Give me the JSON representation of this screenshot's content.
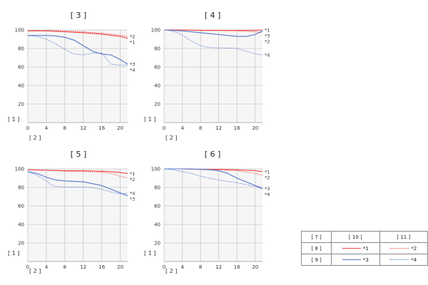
{
  "chart_data": [
    {
      "type": "line",
      "title": "[ 3 ]",
      "ylabel": "[ 1 ]",
      "xlabel": "[ 2 ]",
      "xlim": [
        0,
        21.6
      ],
      "ylim": [
        0,
        100
      ],
      "xticks": [
        0,
        4,
        8,
        12,
        16,
        20
      ],
      "yticks": [
        20,
        40,
        60,
        80,
        100
      ],
      "series": [
        {
          "name": "*1",
          "color": "#ee4444",
          "style": "solid",
          "x": [
            0,
            4,
            8,
            12,
            16,
            20,
            21.6
          ],
          "y": [
            99,
            99,
            98,
            97,
            95.5,
            93,
            91
          ]
        },
        {
          "name": "*2",
          "color": "#ee4444",
          "style": "dotted",
          "x": [
            0,
            4,
            8,
            12,
            16,
            20,
            21.6
          ],
          "y": [
            99.5,
            99.5,
            99,
            98,
            96.5,
            94.5,
            93
          ]
        },
        {
          "name": "*3",
          "color": "#5577cc",
          "style": "solid",
          "x": [
            0,
            2,
            4,
            6,
            8,
            10,
            12,
            14,
            16,
            18,
            20,
            21.6
          ],
          "y": [
            94,
            94,
            94,
            93.5,
            92,
            89,
            83,
            77,
            74,
            73,
            68,
            63
          ]
        },
        {
          "name": "*4",
          "color": "#5577cc",
          "style": "dotted",
          "x": [
            0,
            2,
            4,
            6,
            8,
            10,
            12,
            14,
            16,
            18,
            20,
            21.6
          ],
          "y": [
            94,
            93,
            90,
            85,
            79,
            74,
            73,
            75,
            75,
            63,
            62,
            62
          ]
        }
      ],
      "end_labels": [
        "*2",
        "*1",
        "*3",
        "*4"
      ]
    },
    {
      "type": "line",
      "title": "[ 4 ]",
      "ylabel": "[ 1 ]",
      "xlabel": "[ 2 ]",
      "xlim": [
        0,
        21.6
      ],
      "ylim": [
        0,
        100
      ],
      "xticks": [
        0,
        4,
        8,
        12,
        16,
        20
      ],
      "yticks": [
        20,
        40,
        60,
        80,
        100
      ],
      "series": [
        {
          "name": "*1",
          "color": "#ee4444",
          "style": "solid",
          "x": [
            0,
            4,
            8,
            12,
            16,
            20,
            21.6
          ],
          "y": [
            100,
            100,
            99.5,
            99.5,
            99.5,
            99.5,
            100
          ]
        },
        {
          "name": "*2",
          "color": "#ee4444",
          "style": "dotted",
          "x": [
            0,
            4,
            8,
            12,
            16,
            20,
            21.6
          ],
          "y": [
            100,
            100,
            99.5,
            99.5,
            99,
            98,
            97
          ]
        },
        {
          "name": "*3",
          "color": "#5577cc",
          "style": "solid",
          "x": [
            0,
            4,
            8,
            10,
            12,
            14,
            16,
            18,
            20,
            21.6
          ],
          "y": [
            100,
            99,
            97,
            96,
            95,
            94,
            93,
            93,
            95,
            99
          ]
        },
        {
          "name": "*4",
          "color": "#5577cc",
          "style": "dotted",
          "x": [
            0,
            1.5,
            3,
            4,
            6,
            8,
            10,
            12,
            14,
            16,
            18,
            20,
            21.6
          ],
          "y": [
            100,
            99,
            97,
            94,
            88,
            83,
            81,
            80.5,
            80.5,
            80,
            77,
            74,
            73
          ]
        }
      ],
      "end_labels": [
        "*1",
        "*3",
        "*2",
        "*4"
      ]
    },
    {
      "type": "line",
      "title": "[ 5 ]",
      "ylabel": "[ 1 ]",
      "xlabel": "[ 2 ]",
      "xlim": [
        0,
        21.6
      ],
      "ylim": [
        0,
        100
      ],
      "xticks": [
        0,
        4,
        8,
        12,
        16,
        20
      ],
      "yticks": [
        20,
        40,
        60,
        80,
        100
      ],
      "series": [
        {
          "name": "*1",
          "color": "#ee4444",
          "style": "solid",
          "x": [
            0,
            4,
            8,
            12,
            16,
            18,
            20,
            21.6
          ],
          "y": [
            99,
            98.5,
            98,
            98,
            97.5,
            97,
            96,
            95
          ]
        },
        {
          "name": "*2",
          "color": "#ee4444",
          "style": "dotted",
          "x": [
            0,
            4,
            8,
            12,
            16,
            18,
            20,
            21.6
          ],
          "y": [
            99,
            98.5,
            97.5,
            97,
            96.5,
            95,
            92,
            90
          ]
        },
        {
          "name": "*3",
          "color": "#5577cc",
          "style": "solid",
          "x": [
            0,
            2,
            4,
            6,
            8,
            10,
            12,
            14,
            16,
            18,
            20,
            21.6
          ],
          "y": [
            97,
            95,
            91,
            88,
            87,
            86.5,
            86,
            84,
            82,
            78,
            74,
            71
          ]
        },
        {
          "name": "*4",
          "color": "#5577cc",
          "style": "dotted",
          "x": [
            0,
            2,
            4,
            5,
            6,
            8,
            10,
            12,
            14,
            16,
            18,
            20,
            21.6
          ],
          "y": [
            97,
            93,
            87,
            83,
            81,
            80.5,
            80.5,
            80.5,
            79.5,
            78,
            75,
            73,
            74
          ]
        }
      ],
      "end_labels": [
        "*1",
        "*2",
        "*4",
        "*3"
      ]
    },
    {
      "type": "line",
      "title": "[ 6 ]",
      "ylabel": "[ 1 ]",
      "xlabel": "[ 2 ]",
      "xlim": [
        0,
        21.6
      ],
      "ylim": [
        0,
        100
      ],
      "xticks": [
        0,
        4,
        8,
        12,
        16,
        20
      ],
      "yticks": [
        20,
        40,
        60,
        80,
        100
      ],
      "series": [
        {
          "name": "*1",
          "color": "#ee4444",
          "style": "solid",
          "x": [
            0,
            4,
            8,
            12,
            16,
            20,
            21.6
          ],
          "y": [
            100,
            100,
            99.5,
            99.5,
            99,
            98,
            97
          ]
        },
        {
          "name": "*2",
          "color": "#ee4444",
          "style": "dotted",
          "x": [
            0,
            4,
            8,
            12,
            16,
            20,
            21.6
          ],
          "y": [
            100,
            100,
            99.5,
            99,
            98,
            95,
            93
          ]
        },
        {
          "name": "*3",
          "color": "#5577cc",
          "style": "solid",
          "x": [
            0,
            4,
            8,
            10,
            12,
            14,
            16,
            18,
            20,
            21.6
          ],
          "y": [
            100,
            100,
            99.5,
            99,
            98,
            95,
            90,
            86,
            82,
            79
          ]
        },
        {
          "name": "*4",
          "color": "#5577cc",
          "style": "dotted",
          "x": [
            0,
            2,
            4,
            6,
            8,
            10,
            12,
            14,
            16,
            18,
            20,
            21.6
          ],
          "y": [
            100,
            99,
            97,
            95,
            92,
            90,
            88,
            86.5,
            85,
            83,
            81,
            78
          ]
        }
      ],
      "end_labels": [
        "*1",
        "*2",
        "*3",
        "*4"
      ]
    }
  ],
  "legend": {
    "header": [
      "[ 7 ]",
      "[ 10 ]",
      "[ 11 ]"
    ],
    "rows": [
      {
        "label": "[ 8 ]",
        "a": "*1",
        "b": "*2"
      },
      {
        "label": "[ 9 ]",
        "a": "*3",
        "b": "*4"
      }
    ]
  }
}
